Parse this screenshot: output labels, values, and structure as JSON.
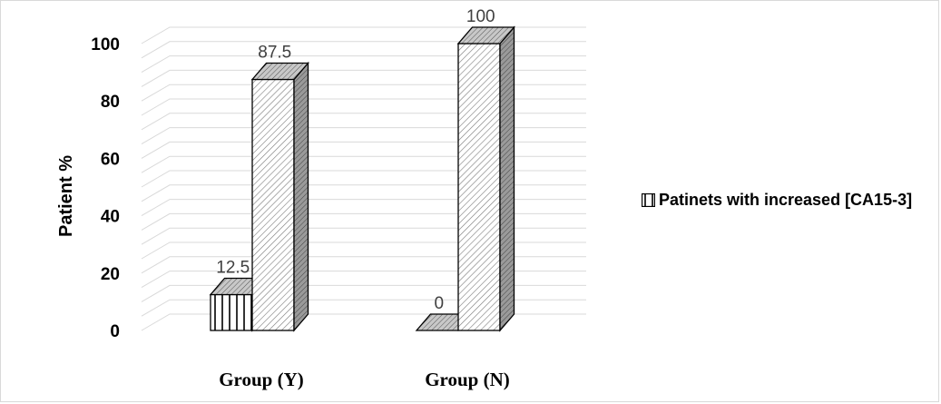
{
  "chart_data": {
    "type": "bar",
    "categories": [
      "Group (Y)",
      "Group (N)"
    ],
    "series": [
      {
        "name": "Patinets with increased [CA15-3]",
        "values": [
          12.5,
          0
        ],
        "pattern": "vertical-lines"
      },
      {
        "values": [
          87.5,
          100
        ],
        "pattern": "diagonal-lines"
      }
    ],
    "data_labels": [
      [
        "12.5",
        "0"
      ],
      [
        "87.5",
        "100"
      ]
    ],
    "ylabel": "Patient %",
    "xlabel": "",
    "ylim": [
      0,
      100
    ],
    "yticks": [
      0,
      20,
      40,
      60,
      80,
      100
    ],
    "grid": true,
    "three_d": true,
    "legend_position": "right"
  },
  "legend": {
    "label": "Patinets with increased [CA15-3]"
  }
}
